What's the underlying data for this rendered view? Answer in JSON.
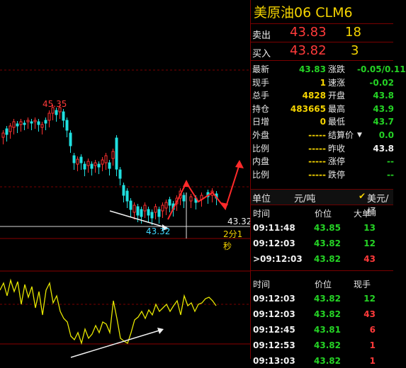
{
  "chart": {
    "peak_label": "45.35",
    "low_label": "43.32",
    "last_price": "43.32",
    "elapsed": "2分1秒"
  },
  "panel": {
    "title": "美原油06  CLM6",
    "sell": {
      "label": "卖出",
      "price": "43.83",
      "vol": "18"
    },
    "buy": {
      "label": "买入",
      "price": "43.82",
      "vol": "3"
    },
    "stats_left": [
      {
        "label": "最新",
        "value": "43.83",
        "color": "#25d325"
      },
      {
        "label": "现手",
        "value": "1",
        "color": "#f5d400"
      },
      {
        "label": "总手",
        "value": "4828",
        "color": "#f5d400"
      },
      {
        "label": "持仓",
        "value": "483665",
        "color": "#f5d400"
      },
      {
        "label": "日增",
        "value": "0",
        "color": "#f5d400"
      },
      {
        "label": "外盘",
        "value": "-----",
        "color": "#f5d400"
      },
      {
        "label": "比例",
        "value": "-----",
        "color": "#f5d400"
      },
      {
        "label": "内盘",
        "value": "-----",
        "color": "#f5d400"
      },
      {
        "label": "比例",
        "value": "-----",
        "color": "#f5d400"
      }
    ],
    "stats_right": [
      {
        "label": "涨跌",
        "value": "-0.05/0.11",
        "color": "#25d325"
      },
      {
        "label": "速涨",
        "value": "-0.02",
        "color": "#25d325"
      },
      {
        "label": "开盘",
        "value": "43.8",
        "color": "#25d325"
      },
      {
        "label": "最高",
        "value": "43.9",
        "color": "#25d325"
      },
      {
        "label": "最低",
        "value": "43.7",
        "color": "#25d325"
      },
      {
        "label": "结算价",
        "value": "0.0",
        "color": "#25d325"
      },
      {
        "label": "昨收",
        "value": "43.8",
        "color": "#f0f0f0"
      },
      {
        "label": "涨停",
        "value": "--",
        "color": "#25d325"
      },
      {
        "label": "跌停",
        "value": "--",
        "color": "#25d325"
      }
    ],
    "unit": {
      "label": "单位",
      "value": "元/吨",
      "check": "✔",
      "alt": "美元/桶"
    },
    "ticks1": {
      "headers": [
        "时间",
        "价位",
        "大单"
      ],
      "rows": [
        {
          "time": "09:11:48",
          "price": "43.85",
          "vol": "13",
          "vcolor": "#25d325"
        },
        {
          "time": "09:12:03",
          "price": "43.82",
          "vol": "12",
          "vcolor": "#25d325"
        },
        {
          "time": ">09:12:03",
          "price": "43.82",
          "vol": "43",
          "vcolor": "#ff3a3a"
        }
      ]
    },
    "ticks2": {
      "headers": [
        "时间",
        "价位",
        "现手"
      ],
      "rows": [
        {
          "time": "09:12:03",
          "price": "43.82",
          "vol": "12",
          "vcolor": "#25d325"
        },
        {
          "time": "09:12:03",
          "price": "43.82",
          "vol": "43",
          "vcolor": "#ff3a3a"
        },
        {
          "time": "09:12:45",
          "price": "43.81",
          "vol": "6",
          "vcolor": "#ff3a3a"
        },
        {
          "time": "09:12:53",
          "price": "43.82",
          "vol": "1",
          "vcolor": "#ff3a3a"
        },
        {
          "time": "09:13:03",
          "price": "43.82",
          "vol": "1",
          "vcolor": "#ff3a3a"
        }
      ]
    }
  }
}
